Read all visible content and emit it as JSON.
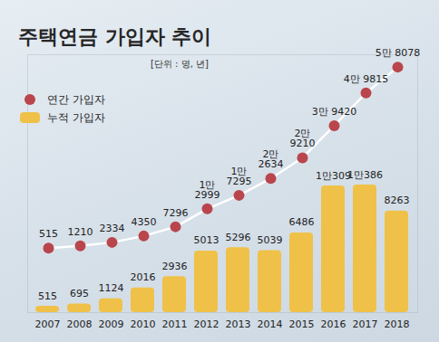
{
  "chart_data": {
    "type": "bar",
    "title": "주택연금 가입자 추이",
    "subtitle": "[단위 : 명, 년]",
    "categories": [
      "2007",
      "2008",
      "2009",
      "2010",
      "2011",
      "2012",
      "2013",
      "2014",
      "2015",
      "2016",
      "2017",
      "2018"
    ],
    "series": [
      {
        "name": "연간 가입자",
        "type": "line",
        "marker": "circle",
        "color": "#b8464c",
        "axis": "y2",
        "values": [
          515,
          1210,
          2334,
          4350,
          7296,
          12999,
          17295,
          22634,
          29210,
          39420,
          49815,
          58078
        ],
        "value_labels": [
          "515",
          "1210",
          "2334",
          "4350",
          "7296",
          "1만\n2999",
          "1만\n7295",
          "2만\n2634",
          "2만\n9210",
          "3만 9420",
          "4만 9815",
          "5만 8078"
        ]
      },
      {
        "name": "누적 가입자",
        "type": "bar",
        "color": "#f0c148",
        "values": [
          515,
          695,
          1124,
          2016,
          2936,
          5013,
          5296,
          5039,
          6486,
          10309,
          10386,
          8263
        ],
        "value_labels": [
          "515",
          "695",
          "1124",
          "2016",
          "2936",
          "5013",
          "5296",
          "5039",
          "6486",
          "1만309",
          "1만386",
          "8263"
        ]
      }
    ],
    "ylim": [
      0,
      21000
    ],
    "y2lim": [
      -20000,
      62000
    ],
    "data_labels": true,
    "tick_labels": "x",
    "legend": "top-left",
    "grid": false
  }
}
